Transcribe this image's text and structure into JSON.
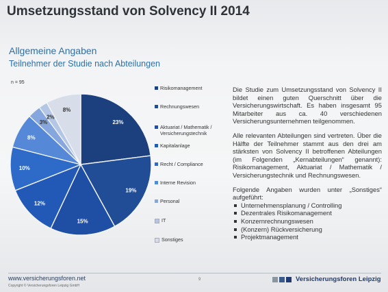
{
  "slide": {
    "title": "Umsetzungsstand von Solvency II 2014",
    "section_title": "Allgemeine Angaben",
    "section_subtitle": "Teilnehmer der Studie nach Abteilungen"
  },
  "chart_data": {
    "type": "pie",
    "title": "",
    "note": "n = 95",
    "legend_position": "right",
    "slices": [
      {
        "label": "Risikomanagement",
        "value": 23,
        "value_label": "23%",
        "color": "#1c3f7e"
      },
      {
        "label": "Rechnungswesen",
        "value": 19,
        "value_label": "19%",
        "color": "#214c96"
      },
      {
        "label": "Aktuariat / Mathematik / Versicherungstechnik",
        "value": 15,
        "value_label": "15%",
        "color": "#1f4fa5"
      },
      {
        "label": "Kapitalanlage",
        "value": 12,
        "value_label": "12%",
        "color": "#2359b6"
      },
      {
        "label": "Recht / Compliance",
        "value": 10,
        "value_label": "10%",
        "color": "#2e6ac8"
      },
      {
        "label": "Interne Revision",
        "value": 8,
        "value_label": "8%",
        "color": "#5588d6"
      },
      {
        "label": "Personal",
        "value": 3,
        "value_label": "3%",
        "color": "#86a7de"
      },
      {
        "label": "IT",
        "value": 2,
        "value_label": "2%",
        "color": "#b4c6e6"
      },
      {
        "label": "Sonstiges",
        "value": 8,
        "value_label": "8%",
        "color": "#d7deea"
      }
    ]
  },
  "text": {
    "para1": "Die Studie zum Umsetzungsstand von Solvency II bildet einen guten Querschnitt über die Versicherungswirtschaft. Es haben insgesamt 95 Mitarbeiter aus ca. 40 verschiedenen Versicherungsunternehmen teilgenommen.",
    "para2": "Alle relevanten Abteilungen sind vertreten. Über die Hälfte der Teilnehmer stammt aus den drei am stärksten von Solvency II betroffenen Abteilungen (im Folgenden „Kernabteilungen“ genannt): Risikomanagement, Aktuariat / Mathematik / Versicherungstechnik und Rechnungswesen.",
    "para3": "Folgende Angaben wurden unter „Sonstiges“ aufgeführt:",
    "bullets": [
      "Unternehmensplanung / Controlling",
      "Dezentrales Risikomanagement",
      "Konzernrechnungswesen",
      "(Konzern) Rückversicherung",
      "Projektmanagement"
    ]
  },
  "footer": {
    "url": "www.versicherungsforen.net",
    "copyright": "Copyright © Versicherungsforen Leipzig GmbH",
    "page_number": "9",
    "brand": "Versicherungsforen Leipzig",
    "brand_colors": [
      "#8c96a0",
      "#3a5a8c",
      "#1f3b73"
    ]
  }
}
